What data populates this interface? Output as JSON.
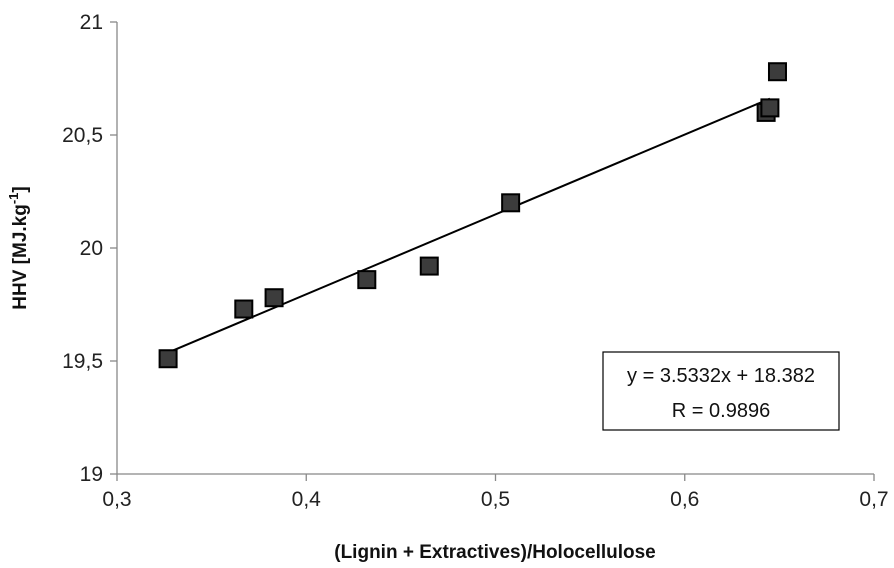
{
  "chart_data": {
    "type": "scatter",
    "xlabel": "(Lignin + Extractives)/Holocellulose",
    "ylabel": "HHV [MJ.kg",
    "ylabel_sup": "-1",
    "ylabel_close": "]",
    "xlim": [
      0.3,
      0.7
    ],
    "ylim": [
      19,
      21
    ],
    "x_ticks": [
      0.3,
      0.4,
      0.5,
      0.6,
      0.7
    ],
    "x_tick_labels": [
      "0,3",
      "0,4",
      "0,5",
      "0,6",
      "0,7"
    ],
    "y_ticks": [
      19,
      19.5,
      20,
      20.5,
      21
    ],
    "y_tick_labels": [
      "19",
      "19,5",
      "20",
      "20,5",
      "21"
    ],
    "grid": false,
    "marker": "square",
    "marker_color": "#3c3c3c",
    "points": [
      {
        "x": 0.327,
        "y": 19.51
      },
      {
        "x": 0.367,
        "y": 19.73
      },
      {
        "x": 0.383,
        "y": 19.78
      },
      {
        "x": 0.432,
        "y": 19.86
      },
      {
        "x": 0.465,
        "y": 19.92
      },
      {
        "x": 0.508,
        "y": 20.2
      },
      {
        "x": 0.643,
        "y": 20.6
      },
      {
        "x": 0.645,
        "y": 20.62
      },
      {
        "x": 0.649,
        "y": 20.78
      }
    ],
    "trendline": {
      "slope": 3.5332,
      "intercept": 18.382,
      "x_range": [
        0.327,
        0.645
      ],
      "equation_label": "y = 3.5332x + 18.382",
      "r_label": "R = 0.9896"
    }
  }
}
